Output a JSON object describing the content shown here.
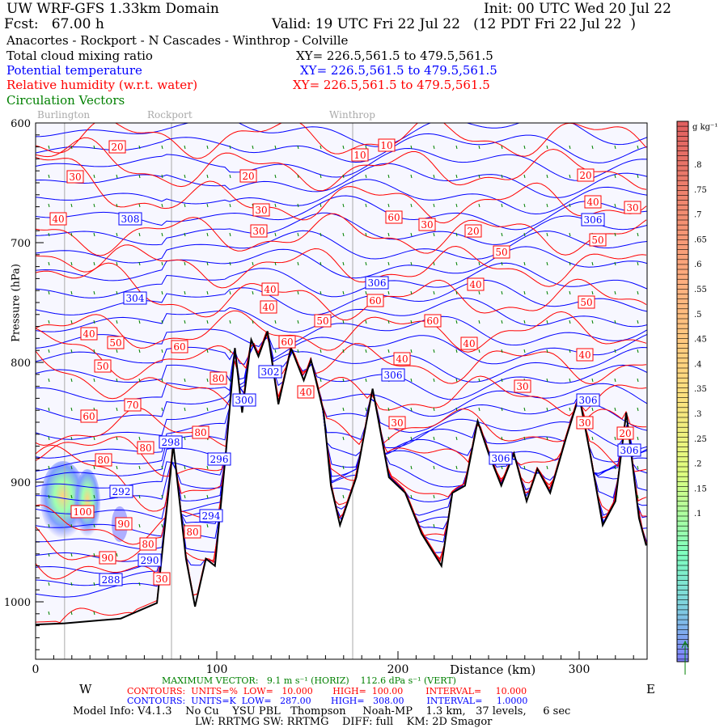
{
  "header": {
    "title": "UW WRF-GFS 1.33km Domain",
    "init": "Init: 00 UTC Wed 20 Jul 22",
    "fcst": "Fcst:   67.00 h",
    "valid": "Valid: 19 UTC Fri 22 Jul 22   (12 PDT Fri 22 Jul 22  )",
    "route": "Anacortes - Rockport - N Cascades - Winthrop - Colville",
    "fields": [
      {
        "name": "Total cloud mixing ratio",
        "xy": "XY= 226.5,561.5 to 479.5,561.5",
        "color": "#000000"
      },
      {
        "name": "Potential temperature",
        "xy": "XY= 226.5,561.5 to 479.5,561.5",
        "color": "#0000ff"
      },
      {
        "name": "Relative humidity (w.r.t. water)",
        "xy": "XY= 226.5,561.5 to 479.5,561.5",
        "color": "#ff0000"
      },
      {
        "name": "Circulation Vectors",
        "xy": "",
        "color": "#008000"
      }
    ]
  },
  "chart_data": {
    "type": "cross-section",
    "xlabel": "Distance (km)",
    "ylabel": "Pressure (hPa)",
    "xlim": [
      0,
      337
    ],
    "ylim": [
      1047,
      600
    ],
    "x_ticks": [
      "0",
      "100",
      "200",
      "300"
    ],
    "x_tick_values": [
      0,
      100,
      200,
      300
    ],
    "y_ticks": [
      "600",
      "700",
      "800",
      "900",
      "1000"
    ],
    "y_tick_values": [
      600,
      700,
      800,
      900,
      1000
    ],
    "west_label": "W",
    "east_label": "E",
    "stations": [
      {
        "name": "Burlington",
        "km": 16
      },
      {
        "name": "Rockport",
        "km": 75
      },
      {
        "name": "Winthrop",
        "km": 175
      }
    ],
    "terrain_km_hpa": [
      [
        0,
        1019
      ],
      [
        16,
        1018
      ],
      [
        47,
        1014
      ],
      [
        67,
        1001
      ],
      [
        76,
        869
      ],
      [
        83,
        964
      ],
      [
        88,
        1004
      ],
      [
        94,
        964
      ],
      [
        99,
        970
      ],
      [
        105,
        876
      ],
      [
        110,
        788
      ],
      [
        114,
        842
      ],
      [
        119,
        781
      ],
      [
        123,
        795
      ],
      [
        128,
        774
      ],
      [
        134,
        835
      ],
      [
        141,
        788
      ],
      [
        148,
        815
      ],
      [
        152,
        798
      ],
      [
        159,
        842
      ],
      [
        163,
        903
      ],
      [
        168,
        936
      ],
      [
        177,
        896
      ],
      [
        186,
        822
      ],
      [
        195,
        896
      ],
      [
        204,
        909
      ],
      [
        213,
        943
      ],
      [
        224,
        970
      ],
      [
        230,
        909
      ],
      [
        237,
        903
      ],
      [
        244,
        849
      ],
      [
        250,
        876
      ],
      [
        257,
        903
      ],
      [
        264,
        876
      ],
      [
        271,
        916
      ],
      [
        277,
        889
      ],
      [
        284,
        909
      ],
      [
        293,
        862
      ],
      [
        300,
        828
      ],
      [
        306,
        876
      ],
      [
        313,
        936
      ],
      [
        320,
        916
      ],
      [
        326,
        842
      ],
      [
        333,
        930
      ],
      [
        337,
        953
      ]
    ],
    "colorbar": {
      "units": "g kg⁻¹",
      "labels": [
        ".8",
        ".75",
        ".7",
        ".65",
        ".6",
        ".55",
        ".5",
        ".45",
        ".4",
        ".35",
        ".3",
        ".25",
        ".2",
        ".15",
        ".1"
      ],
      "range": [
        0.05,
        0.85
      ],
      "low_color": "#7f7fff",
      "mid_color": "#ffe97f",
      "high_color": "#e06060"
    },
    "contour_labels": [
      {
        "text": "20",
        "series": "rh"
      },
      {
        "text": "30",
        "series": "rh"
      },
      {
        "text": "40",
        "series": "rh"
      },
      {
        "text": "20",
        "series": "rh"
      },
      {
        "text": "30",
        "series": "rh"
      },
      {
        "text": "30",
        "series": "rh"
      },
      {
        "text": "10",
        "series": "rh"
      },
      {
        "text": "10",
        "series": "rh"
      },
      {
        "text": "60",
        "series": "rh"
      },
      {
        "text": "30",
        "series": "rh"
      },
      {
        "text": "20",
        "series": "rh"
      },
      {
        "text": "50",
        "series": "rh"
      },
      {
        "text": "20",
        "series": "rh"
      },
      {
        "text": "40",
        "series": "rh"
      },
      {
        "text": "50",
        "series": "rh"
      },
      {
        "text": "30",
        "series": "rh"
      },
      {
        "text": "40",
        "series": "rh"
      },
      {
        "text": "50",
        "series": "rh"
      },
      {
        "text": "40",
        "series": "rh"
      },
      {
        "text": "40",
        "series": "rh"
      },
      {
        "text": "50",
        "series": "rh"
      },
      {
        "text": "60",
        "series": "rh"
      },
      {
        "text": "60",
        "series": "rh"
      },
      {
        "text": "40",
        "series": "rh"
      },
      {
        "text": "50",
        "series": "rh"
      },
      {
        "text": "50",
        "series": "rh"
      },
      {
        "text": "60",
        "series": "rh"
      },
      {
        "text": "60",
        "series": "rh"
      },
      {
        "text": "40",
        "series": "rh"
      },
      {
        "text": "40",
        "series": "rh"
      },
      {
        "text": "40",
        "series": "rh"
      },
      {
        "text": "80",
        "series": "rh"
      },
      {
        "text": "30",
        "series": "rh"
      },
      {
        "text": "40",
        "series": "rh"
      },
      {
        "text": "70",
        "series": "rh"
      },
      {
        "text": "60",
        "series": "rh"
      },
      {
        "text": "80",
        "series": "rh"
      },
      {
        "text": "30",
        "series": "rh"
      },
      {
        "text": "30",
        "series": "rh"
      },
      {
        "text": "80",
        "series": "rh"
      },
      {
        "text": "80",
        "series": "rh"
      },
      {
        "text": "20",
        "series": "rh"
      },
      {
        "text": "100",
        "series": "rh"
      },
      {
        "text": "90",
        "series": "rh"
      },
      {
        "text": "80",
        "series": "rh"
      },
      {
        "text": "90",
        "series": "rh"
      },
      {
        "text": "80",
        "series": "rh"
      },
      {
        "text": "30",
        "series": "rh"
      },
      {
        "text": "308",
        "series": "theta"
      },
      {
        "text": "304",
        "series": "theta"
      },
      {
        "text": "306",
        "series": "theta"
      },
      {
        "text": "302",
        "series": "theta"
      },
      {
        "text": "306",
        "series": "theta"
      },
      {
        "text": "300",
        "series": "theta"
      },
      {
        "text": "306",
        "series": "theta"
      },
      {
        "text": "298",
        "series": "theta"
      },
      {
        "text": "296",
        "series": "theta"
      },
      {
        "text": "306",
        "series": "theta"
      },
      {
        "text": "306",
        "series": "theta"
      },
      {
        "text": "292",
        "series": "theta"
      },
      {
        "text": "294",
        "series": "theta"
      },
      {
        "text": "290",
        "series": "theta"
      },
      {
        "text": "288",
        "series": "theta"
      },
      {
        "text": "306",
        "series": "theta"
      }
    ]
  },
  "footer": {
    "max_vector": "MAXIMUM VECTOR:   9.1 m s⁻¹ (HORIZ)    112.6 dPa s⁻¹ (VERT)",
    "rh_contours": "CONTOURS:  UNITS=%  LOW=   10.000       HIGH=  100.00        INTERVAL=     10.000",
    "theta_contours": "CONTOURS:  UNITS=K  LOW=   287.00       HIGH=   308.00        INTERVAL=     1.0000",
    "model_info": "Model Info: V4.1.3    No Cu    YSU PBL   Thompson     Noah-MP    1.3 km,   37 levels,     6 sec",
    "model_info2": "LW: RRTMG SW: RRTMG    DIFF: full    KM: 2D Smagor"
  }
}
